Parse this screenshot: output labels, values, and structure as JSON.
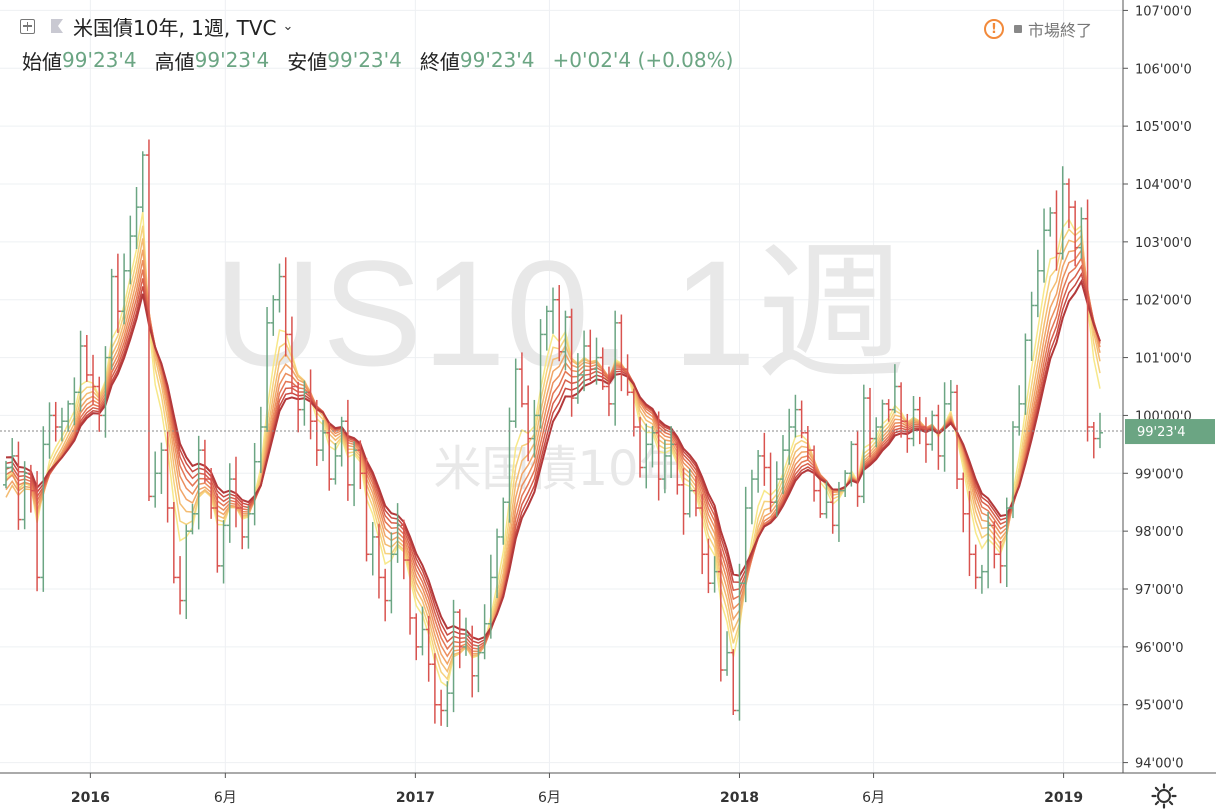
{
  "header": {
    "symbol_title": "米国債10年, 1週, TVC",
    "ohlc": [
      {
        "label": "始値",
        "value": "99'23'4"
      },
      {
        "label": "高値",
        "value": "99'23'4"
      },
      {
        "label": "安値",
        "value": "99'23'4"
      },
      {
        "label": "終値",
        "value": "99'23'4"
      }
    ],
    "change": "+0'02'4 (+0.08%)",
    "market_status": "市場終了"
  },
  "watermark": {
    "big": "US10, 1週",
    "small": "米国債10年"
  },
  "colors": {
    "up": "#6ba583",
    "down": "#d9534f",
    "ribbon": [
      "#f7e88a",
      "#f6d27d",
      "#f4bc72",
      "#f1a568",
      "#ec8f5e",
      "#e47755",
      "#d8604c",
      "#c84b43",
      "#b3393b"
    ]
  },
  "chart_data": {
    "type": "ohlc",
    "interval": "1週",
    "ylim": [
      93.82,
      107.18
    ],
    "y_ticks": [
      "107'00'0",
      "106'00'0",
      "105'00'0",
      "104'00'0",
      "103'00'0",
      "102'00'0",
      "101'00'0",
      "100'00'0",
      "99'00'0",
      "98'00'0",
      "97'00'0",
      "96'00'0",
      "95'00'0",
      "94'00'0"
    ],
    "x_ticks": [
      {
        "label": "2016",
        "date": "2016-01-01",
        "bold": true
      },
      {
        "label": "6月",
        "date": "2016-06-01",
        "bold": false
      },
      {
        "label": "2017",
        "date": "2017-01-01",
        "bold": true
      },
      {
        "label": "6月",
        "date": "2017-06-01",
        "bold": false
      },
      {
        "label": "2018",
        "date": "2018-01-01",
        "bold": true
      },
      {
        "label": "6月",
        "date": "2018-06-01",
        "bold": false
      },
      {
        "label": "2019",
        "date": "2019-01-01",
        "bold": true
      }
    ],
    "last_price": {
      "label": "99'23'4",
      "value": 99.73
    },
    "closes": [
      99.1,
      99.3,
      98.2,
      99.0,
      98.7,
      97.2,
      99.5,
      100.0,
      99.8,
      99.9,
      100.2,
      100.4,
      101.2,
      100.7,
      100.5,
      100.0,
      101.0,
      102.4,
      101.8,
      102.5,
      103.1,
      103.6,
      104.5,
      98.6,
      99.0,
      99.4,
      98.4,
      97.2,
      96.8,
      98.0,
      98.3,
      99.4,
      98.9,
      98.4,
      97.4,
      98.1,
      98.9,
      98.4,
      97.9,
      98.3,
      99.2,
      99.8,
      101.6,
      102.0,
      102.4,
      101.4,
      100.5,
      100.1,
      100.4,
      99.9,
      99.4,
      99.7,
      98.9,
      99.3,
      99.9,
      98.8,
      99.4,
      99.0,
      97.6,
      97.9,
      97.2,
      96.8,
      97.6,
      98.1,
      97.5,
      96.5,
      96.0,
      96.3,
      95.7,
      95.0,
      94.9,
      95.2,
      96.6,
      96.0,
      96.2,
      95.5,
      95.9,
      96.4,
      97.2,
      97.9,
      98.5,
      99.9,
      100.8,
      100.2,
      99.6,
      100.0,
      101.4,
      101.8,
      102.0,
      101.1,
      101.7,
      100.3,
      100.7,
      101.2,
      100.8,
      101.0,
      100.5,
      100.2,
      101.6,
      100.8,
      100.4,
      99.8,
      99.1,
      99.5,
      99.7,
      98.9,
      99.3,
      99.5,
      98.8,
      98.3,
      98.7,
      98.4,
      97.6,
      97.1,
      97.3,
      95.6,
      95.9,
      94.9,
      97.1,
      98.4,
      98.9,
      99.3,
      99.1,
      98.5,
      98.9,
      99.4,
      99.8,
      100.1,
      99.7,
      99.4,
      98.7,
      98.3,
      98.5,
      98.1,
      98.7,
      99.0,
      99.5,
      98.6,
      100.3,
      99.6,
      99.8,
      100.2,
      100.1,
      100.5,
      99.9,
      99.6,
      100.1,
      99.8,
      99.5,
      100.0,
      99.3,
      100.2,
      100.4,
      98.9,
      98.3,
      97.6,
      97.2,
      97.3,
      98.1,
      97.6,
      97.4,
      98.4,
      99.8,
      100.2,
      101.3,
      101.9,
      102.5,
      103.2,
      103.5,
      102.8,
      104.0,
      103.6,
      102.9,
      103.4,
      99.8,
      99.6,
      99.7
    ],
    "ribbon_periods": [
      4,
      5,
      6,
      7,
      8,
      9,
      10,
      11,
      12
    ]
  }
}
